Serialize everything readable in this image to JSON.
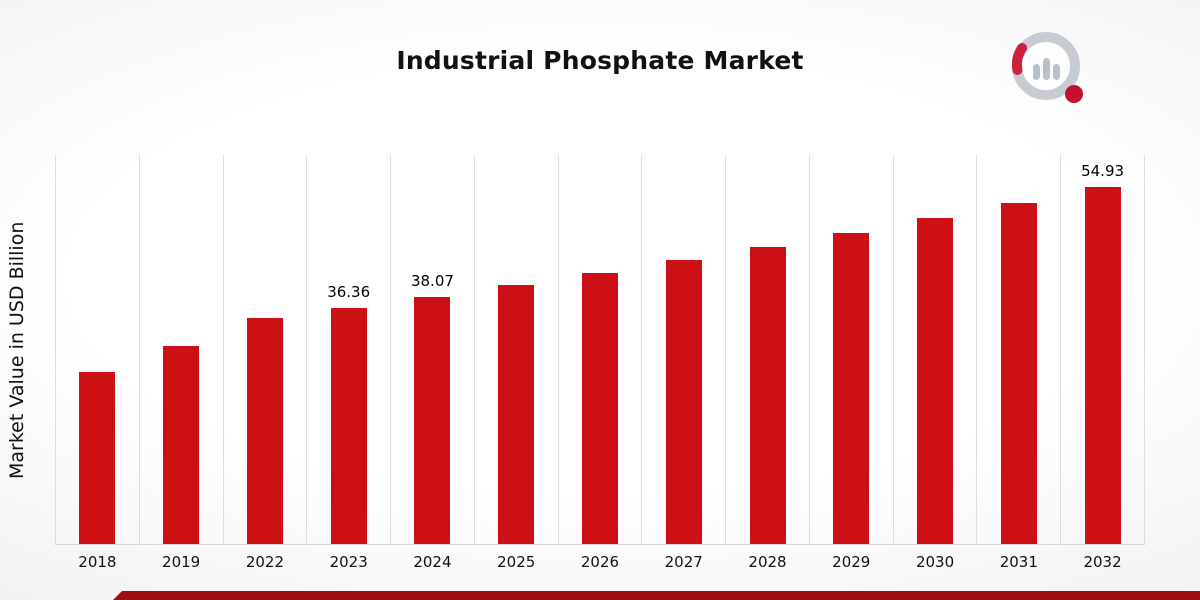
{
  "page": {
    "title": "Industrial Phosphate Market",
    "accent_bar_color": "#9e0d11",
    "brand_logo": "bar-chart-magnifier-logo",
    "logo_gray": "#c7ccd3",
    "logo_red": "#c8102e"
  },
  "chart_data": {
    "type": "bar",
    "title": "Industrial Phosphate Market",
    "xlabel": "",
    "ylabel": "Market Value in USD Billion",
    "categories": [
      "2018",
      "2019",
      "2022",
      "2023",
      "2024",
      "2025",
      "2026",
      "2027",
      "2028",
      "2029",
      "2030",
      "2031",
      "2032"
    ],
    "values": [
      26.5,
      30.4,
      34.7,
      36.36,
      38.07,
      39.9,
      41.7,
      43.7,
      45.7,
      47.9,
      50.1,
      52.5,
      54.93
    ],
    "value_labels": [
      "",
      "",
      "",
      "36.36",
      "38.07",
      "",
      "",
      "",
      "",
      "",
      "",
      "",
      "54.93"
    ],
    "bar_color": "#cc1016",
    "grid": "vertical-only",
    "legend": "none",
    "ylim": [
      0,
      60
    ]
  }
}
